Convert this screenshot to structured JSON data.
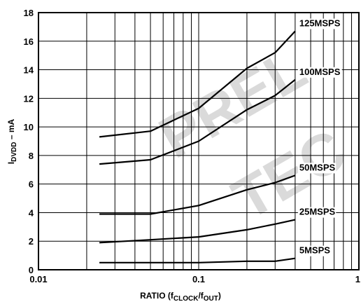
{
  "chart_data": {
    "type": "line",
    "x_scale": "log",
    "xlim": [
      0.01,
      1
    ],
    "ylim": [
      0,
      18
    ],
    "grid": true,
    "x_ticks": [
      "0.01",
      "0.1",
      "1"
    ],
    "y_ticks": [
      "0",
      "2",
      "4",
      "6",
      "8",
      "10",
      "12",
      "14",
      "16",
      "18"
    ],
    "xlabel": {
      "main": "RATIO (f",
      "sub1": "CLOCK",
      "mid": "/f",
      "sub2": "OUT",
      "end": ")"
    },
    "ylabel": {
      "main": "I",
      "sub": "DVDD",
      "end": " – mA"
    },
    "watermark": [
      "PREL",
      "TEC"
    ],
    "series": [
      {
        "name": "125MSPS",
        "x": [
          0.024,
          0.05,
          0.1,
          0.2,
          0.3,
          0.4
        ],
        "y": [
          9.3,
          9.7,
          11.3,
          14.1,
          15.2,
          16.7
        ]
      },
      {
        "name": "100MSPS",
        "x": [
          0.024,
          0.05,
          0.1,
          0.2,
          0.3,
          0.4
        ],
        "y": [
          7.4,
          7.7,
          9.0,
          11.2,
          12.2,
          13.3
        ]
      },
      {
        "name": "50MSPS",
        "x": [
          0.024,
          0.05,
          0.1,
          0.2,
          0.3,
          0.4
        ],
        "y": [
          3.9,
          3.9,
          4.5,
          5.6,
          6.1,
          6.6
        ]
      },
      {
        "name": "25MSPS",
        "x": [
          0.024,
          0.05,
          0.1,
          0.2,
          0.3,
          0.4
        ],
        "y": [
          1.9,
          2.1,
          2.3,
          2.8,
          3.2,
          3.5
        ]
      },
      {
        "name": "5MSPS",
        "x": [
          0.024,
          0.05,
          0.1,
          0.2,
          0.3,
          0.4
        ],
        "y": [
          0.5,
          0.5,
          0.5,
          0.6,
          0.6,
          0.8
        ]
      }
    ]
  }
}
